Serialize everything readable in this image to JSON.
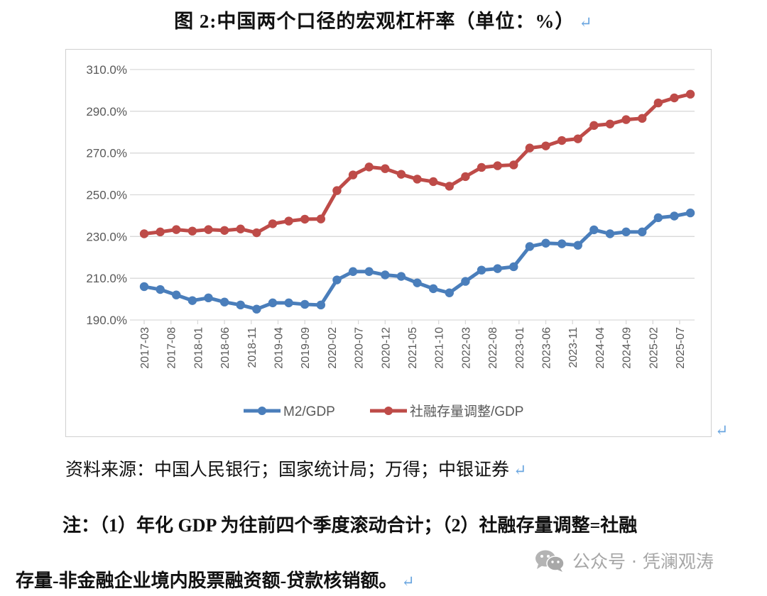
{
  "title": "图 2:中国两个口径的宏观杠杆率（单位：%）",
  "paragraph_mark": "↵",
  "source": "资料来源：中国人民银行；国家统计局；万得；中银证券",
  "note_line1": "注：（1）年化 GDP 为往前四个季度滚动合计；（2）社融存量调整=社融",
  "note_line2": "存量-非金融企业境内股票融资额-贷款核销额。",
  "watermark": {
    "icon": "wechat-icon",
    "text": "公众号 · 凭澜观涛"
  },
  "chart_data": {
    "type": "line",
    "title": "",
    "xlabel": "",
    "ylabel": "",
    "ylim": [
      190,
      310
    ],
    "yticks": [
      190,
      210,
      230,
      250,
      270,
      290,
      310
    ],
    "ytick_labels": [
      "190.0%",
      "210.0%",
      "230.0%",
      "250.0%",
      "270.0%",
      "290.0%",
      "310.0%"
    ],
    "grid": true,
    "legend_position": "bottom",
    "x": [
      "2017-03",
      "2017-06",
      "2017-09",
      "2017-12",
      "2018-03",
      "2018-06",
      "2018-09",
      "2018-12",
      "2019-03",
      "2019-06",
      "2019-09",
      "2019-12",
      "2020-03",
      "2020-06",
      "2020-09",
      "2020-12",
      "2021-03",
      "2021-06",
      "2021-09",
      "2021-12",
      "2022-03",
      "2022-06",
      "2022-09",
      "2022-12",
      "2023-03",
      "2023-06",
      "2023-09",
      "2023-12",
      "2024-03",
      "2024-06",
      "2024-09",
      "2024-12",
      "2025-03",
      "2025-06",
      "2025-09"
    ],
    "xtick_labels": [
      "2017-03",
      "2017-08",
      "2018-01",
      "2018-06",
      "2018-11",
      "2019-04",
      "2019-09",
      "2020-02",
      "2020-07",
      "2020-12",
      "2021-05",
      "2021-10",
      "2022-03",
      "2022-08",
      "2023-01",
      "2023-06",
      "2023-11",
      "2024-04",
      "2024-09",
      "2025-02",
      "2025-07"
    ],
    "series": [
      {
        "name": "M2/GDP",
        "color": "#4a7ebb",
        "values": [
          206.0,
          204.6,
          202.0,
          199.3,
          200.6,
          198.6,
          197.2,
          195.2,
          198.2,
          198.2,
          197.5,
          197.2,
          209.2,
          213.2,
          213.2,
          211.6,
          210.9,
          207.8,
          205.0,
          203.0,
          208.5,
          213.9,
          214.6,
          215.5,
          225.2,
          226.8,
          226.5,
          225.8,
          233.2,
          231.3,
          232.2,
          232.2,
          239.0,
          239.8,
          241.3
        ]
      },
      {
        "name": "社融存量调整/GDP",
        "color": "#be4b48",
        "values": [
          231.3,
          232.2,
          233.3,
          232.6,
          233.3,
          232.9,
          233.6,
          231.8,
          236.1,
          237.4,
          238.3,
          238.4,
          252.0,
          259.5,
          263.3,
          262.5,
          259.8,
          257.5,
          256.3,
          254.1,
          258.7,
          263.1,
          263.9,
          264.3,
          272.4,
          273.4,
          276.0,
          276.8,
          283.2,
          283.9,
          286.0,
          286.6,
          294.0,
          296.4,
          298.2
        ]
      }
    ]
  }
}
